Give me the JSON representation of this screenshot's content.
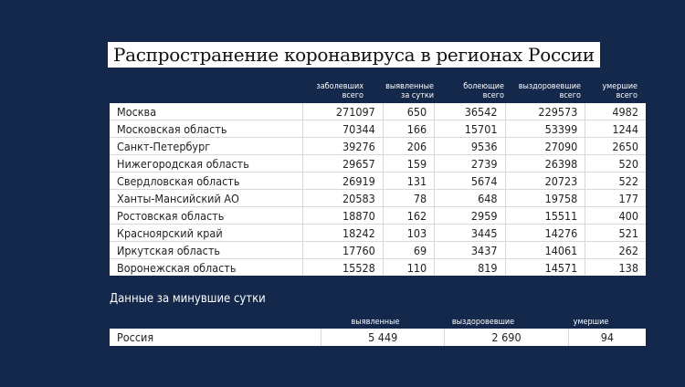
{
  "title": "Распространение коронавируса в регионах России",
  "columns": [
    "заболевших всего",
    "выявленные за сутки",
    "болеющие всего",
    "выздоровевшие всего",
    "умершие всего"
  ],
  "column_lines": [
    [
      "заболевших",
      "всего"
    ],
    [
      "выявленные",
      "за сутки"
    ],
    [
      "болеющие",
      "всего"
    ],
    [
      "выздоровевшие",
      "всего"
    ],
    [
      "умершие",
      "всего"
    ]
  ],
  "rows": [
    [
      "Москва",
      "271097",
      "650",
      "36542",
      "229573",
      "4982"
    ],
    [
      "Московская область",
      "70344",
      "166",
      "15701",
      "53399",
      "1244"
    ],
    [
      "Санкт-Петербург",
      "39276",
      "206",
      "9536",
      "27090",
      "2650"
    ],
    [
      "Нижегородская область",
      "29657",
      "159",
      "2739",
      "26398",
      "520"
    ],
    [
      "Свердловская область",
      "26919",
      "131",
      "5674",
      "20723",
      "522"
    ],
    [
      "Ханты-Мансийский АО",
      "20583",
      "78",
      "648",
      "19758",
      "177"
    ],
    [
      "Ростовская область",
      "18870",
      "162",
      "2959",
      "15511",
      "400"
    ],
    [
      "Красноярский край",
      "18242",
      "103",
      "3445",
      "14276",
      "521"
    ],
    [
      "Иркутская область",
      "17760",
      "69",
      "3437",
      "14061",
      "262"
    ],
    [
      "Воронежская область",
      "15528",
      "110",
      "819",
      "14571",
      "138"
    ]
  ],
  "daily": {
    "title": "Данные за минувшие сутки",
    "columns": [
      "выявленные",
      "выздоровевшие",
      "умершие"
    ],
    "row": [
      "Россия",
      "5 449",
      "2 690",
      "94"
    ]
  },
  "colors": {
    "background": "#13284a",
    "table": "#ffffff"
  }
}
